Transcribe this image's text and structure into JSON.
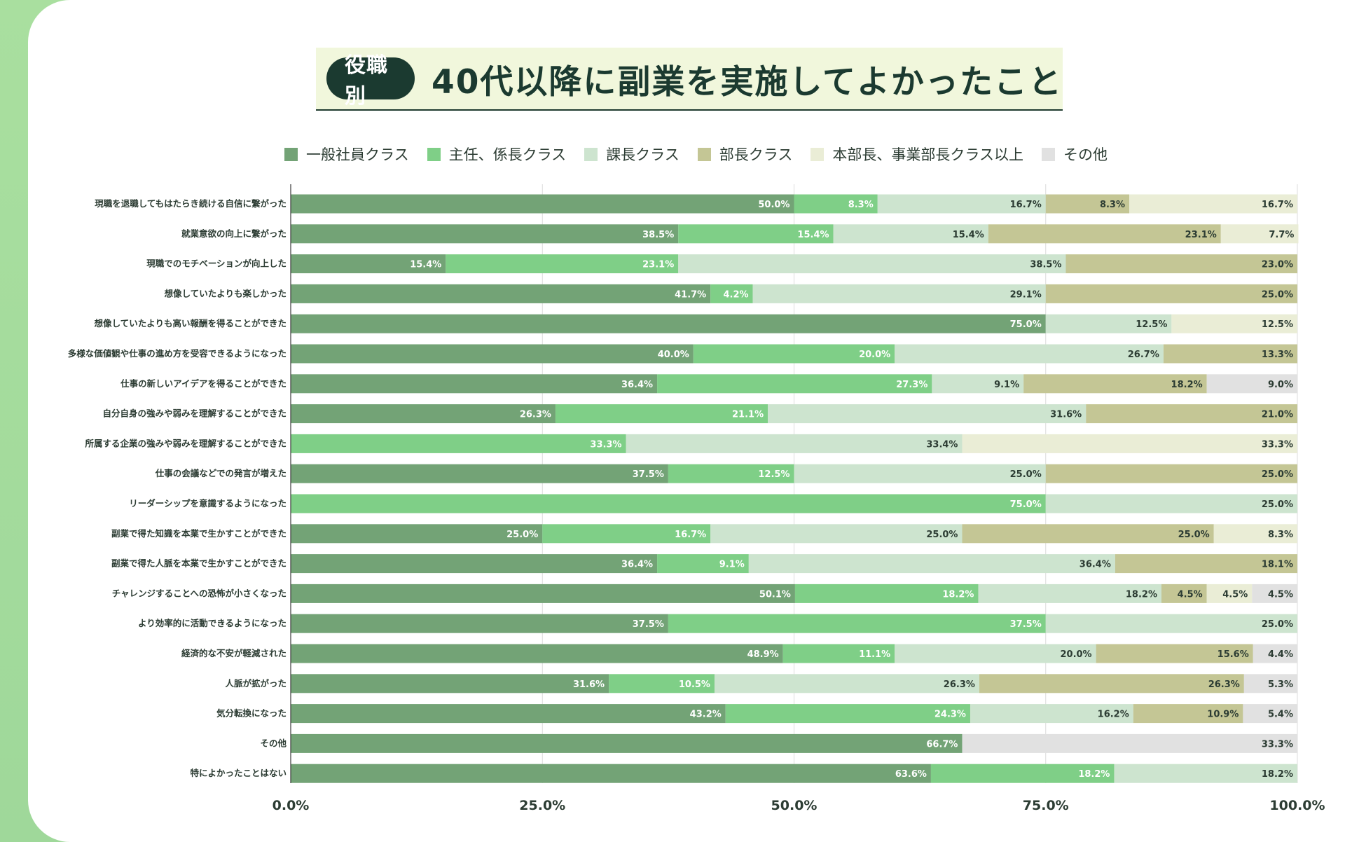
{
  "title": {
    "badge": "役職別",
    "text": "40代以降に副業を実施してよかったこと"
  },
  "colors": {
    "series": [
      "#73a376",
      "#7fcf87",
      "#cde4cf",
      "#c4c695",
      "#eaedd6",
      "#e1e1e1"
    ],
    "title_dark": "#1b3a30",
    "grid": "#dcdcdc"
  },
  "chart_data": {
    "type": "bar",
    "orientation": "horizontal",
    "stacked": true,
    "xlim": [
      0,
      100
    ],
    "x_ticks": [
      "0.0%",
      "25.0%",
      "50.0%",
      "75.0%",
      "100.0%"
    ],
    "legend_position": "top",
    "series_names": [
      "一般社員クラス",
      "主任、係長クラス",
      "課長クラス",
      "部長クラス",
      "本部長、事業部長クラス以上",
      "その他"
    ],
    "categories": [
      "現職を退職してもはたらき続ける自信に繋がった",
      "就業意欲の向上に繋がった",
      "現職でのモチベーションが向上した",
      "想像していたよりも楽しかった",
      "想像していたよりも高い報酬を得ることができた",
      "多様な価値観や仕事の進め方を受容できるようになった",
      "仕事の新しいアイデアを得ることができた",
      "自分自身の強みや弱みを理解することができた",
      "所属する企業の強みや弱みを理解することができた",
      "仕事の会議などでの発言が増えた",
      "リーダーシップを意識するようになった",
      "副業で得た知識を本業で生かすことができた",
      "副業で得た人脈を本業で生かすことができた",
      "チャレンジすることへの恐怖が小さくなった",
      "より効率的に活動できるようになった",
      "経済的な不安が軽減された",
      "人脈が拡がった",
      "気分転換になった",
      "その他",
      "特によかったことはない"
    ],
    "rows": [
      [
        50.0,
        8.3,
        16.7,
        8.3,
        16.7,
        0
      ],
      [
        38.5,
        15.4,
        15.4,
        23.1,
        7.7,
        0
      ],
      [
        15.4,
        23.1,
        38.5,
        23.0,
        0,
        0
      ],
      [
        41.7,
        4.2,
        29.1,
        25.0,
        0,
        0
      ],
      [
        75.0,
        0,
        12.5,
        0,
        12.5,
        0
      ],
      [
        40.0,
        20.0,
        26.7,
        13.3,
        0,
        0
      ],
      [
        36.4,
        27.3,
        9.1,
        18.2,
        0,
        9.0
      ],
      [
        26.3,
        21.1,
        31.6,
        21.0,
        0,
        0
      ],
      [
        0,
        33.3,
        33.4,
        0,
        33.3,
        0
      ],
      [
        37.5,
        12.5,
        25.0,
        25.0,
        0,
        0
      ],
      [
        0,
        75.0,
        25.0,
        0,
        0,
        0
      ],
      [
        25.0,
        16.7,
        25.0,
        25.0,
        8.3,
        0
      ],
      [
        36.4,
        9.1,
        36.4,
        18.1,
        0,
        0
      ],
      [
        50.1,
        18.2,
        18.2,
        4.5,
        4.5,
        4.5
      ],
      [
        37.5,
        37.5,
        25.0,
        0,
        0,
        0
      ],
      [
        48.9,
        11.1,
        20.0,
        15.6,
        0,
        4.4
      ],
      [
        31.6,
        10.5,
        26.3,
        26.3,
        0,
        5.3
      ],
      [
        43.2,
        24.3,
        16.2,
        10.9,
        0,
        5.4
      ],
      [
        66.7,
        0,
        0,
        0,
        0,
        33.3
      ],
      [
        63.6,
        18.2,
        18.2,
        0,
        0,
        0
      ]
    ]
  }
}
